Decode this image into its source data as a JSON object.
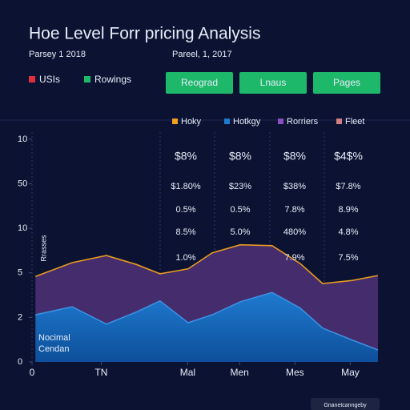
{
  "header": {
    "title": "Hoe Level Forr pricing Analysis",
    "dates": [
      "Parsey 1 2018",
      "Pareel, 1, 2017"
    ]
  },
  "toggles": [
    {
      "label": "USIs",
      "color": "#e0303a"
    },
    {
      "label": "Rowings",
      "color": "#1db86a"
    }
  ],
  "buttons": [
    "Reograd",
    "Lnaus",
    "Pages"
  ],
  "footer_button": "Gnanetcanngeby",
  "chart_data": {
    "type": "area",
    "legend": [
      {
        "label": "Hoky",
        "color": "#f0a020"
      },
      {
        "label": "Hotkgy",
        "color": "#1f7ad0"
      },
      {
        "label": "Rorriers",
        "color": "#8a4fc0"
      },
      {
        "label": "Fleet",
        "color": "#d08080"
      }
    ],
    "side_label": "Rrasses",
    "note": [
      "Nocimal",
      "Cendan"
    ],
    "x": [
      0.1,
      1.16,
      2.15,
      3.01,
      3.7,
      4.51,
      5.21,
      6.02,
      6.94,
      7.75,
      8.4,
      9.26,
      10
    ],
    "xlim": [
      0,
      10
    ],
    "xticks": [
      0,
      {
        "value": 2,
        "label": "TN"
      },
      {
        "value": 4.5,
        "label": "Mal"
      },
      {
        "value": 6,
        "label": "Men"
      },
      {
        "value": 7.6,
        "label": "Mes"
      },
      {
        "value": 9.2,
        "label": "May"
      }
    ],
    "ylim": [
      0,
      5.25
    ],
    "yticks": [
      0,
      {
        "value": 1,
        "label": "2"
      },
      {
        "value": 2,
        "label": "5"
      },
      {
        "value": 3,
        "label": "10"
      },
      {
        "value": 4,
        "label": "50"
      },
      {
        "value": 5,
        "label": "10"
      }
    ],
    "series": [
      {
        "color": "#452c6c",
        "line_color": "#e89a20",
        "values": [
          1.92,
          2.23,
          2.39,
          2.19,
          1.98,
          2.09,
          2.45,
          2.63,
          2.61,
          2.21,
          1.76,
          1.83,
          1.94
        ]
      },
      {
        "color": "#1a6dbd",
        "line_color": "#3d8fe0",
        "values": [
          1.06,
          1.24,
          0.85,
          1.12,
          1.37,
          0.88,
          1.06,
          1.35,
          1.56,
          1.21,
          0.76,
          0.49,
          0.27
        ]
      }
    ],
    "annotations": [
      [
        "$8%",
        "$8%",
        "$8%",
        "$4$%"
      ],
      [
        "$1.80%",
        "$23%",
        "$38%",
        "$7.8%"
      ],
      [
        "0.5%",
        "0.5%",
        "7.8%",
        "8.9%"
      ],
      [
        "8.5%",
        "5.0%",
        "480%",
        "4.8%"
      ],
      [
        "1.0%",
        null,
        "7.9%",
        "7.5%"
      ]
    ]
  }
}
